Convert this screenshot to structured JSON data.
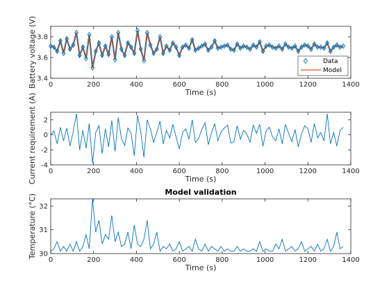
{
  "figure": {
    "background": "#ffffff"
  },
  "chart_data": [
    {
      "type": "line",
      "xlabel": "Time (s)",
      "ylabel": "Battery voltage (V)",
      "xlim": [
        0,
        1400
      ],
      "ylim": [
        3.4,
        3.9
      ],
      "xticks": [
        0,
        200,
        400,
        600,
        800,
        1000,
        1200,
        1400
      ],
      "yticks": [
        3.4,
        3.6,
        3.8
      ],
      "ytick_labels": [
        "3.4",
        "3.6",
        "3.8"
      ],
      "legend": {
        "placement": "bottom-right",
        "entries": [
          "Data",
          "Model"
        ]
      },
      "series": [
        {
          "name": "Data",
          "marker": "diamond",
          "color": "#0072bd"
        },
        {
          "name": "Model",
          "marker": "none",
          "color": "#d95319"
        }
      ],
      "t": [
        0,
        15,
        30,
        45,
        60,
        75,
        90,
        105,
        120,
        135,
        150,
        165,
        180,
        195,
        210,
        225,
        240,
        255,
        270,
        285,
        300,
        315,
        330,
        345,
        360,
        375,
        390,
        405,
        420,
        435,
        450,
        465,
        480,
        495,
        510,
        525,
        540,
        555,
        570,
        585,
        600,
        615,
        630,
        645,
        660,
        675,
        690,
        705,
        720,
        735,
        750,
        765,
        780,
        795,
        810,
        825,
        840,
        855,
        870,
        885,
        900,
        915,
        930,
        945,
        960,
        975,
        990,
        1005,
        1020,
        1035,
        1050,
        1065,
        1080,
        1095,
        1110,
        1125,
        1140,
        1155,
        1170,
        1185,
        1200,
        1215,
        1230,
        1245,
        1260,
        1275,
        1290,
        1305,
        1320,
        1335,
        1350,
        1365
      ],
      "voltage": [
        3.71,
        3.7,
        3.66,
        3.76,
        3.64,
        3.78,
        3.68,
        3.72,
        3.84,
        3.62,
        3.7,
        3.59,
        3.82,
        3.5,
        3.66,
        3.74,
        3.62,
        3.71,
        3.63,
        3.8,
        3.58,
        3.84,
        3.68,
        3.62,
        3.74,
        3.7,
        3.64,
        3.86,
        3.68,
        3.57,
        3.84,
        3.72,
        3.64,
        3.68,
        3.8,
        3.64,
        3.71,
        3.67,
        3.74,
        3.7,
        3.62,
        3.7,
        3.72,
        3.69,
        3.77,
        3.67,
        3.69,
        3.71,
        3.73,
        3.67,
        3.7,
        3.76,
        3.69,
        3.7,
        3.71,
        3.72,
        3.68,
        3.67,
        3.73,
        3.69,
        3.71,
        3.7,
        3.68,
        3.72,
        3.7,
        3.75,
        3.66,
        3.71,
        3.72,
        3.7,
        3.69,
        3.71,
        3.68,
        3.73,
        3.7,
        3.69,
        3.71,
        3.66,
        3.7,
        3.72,
        3.71,
        3.68,
        3.73,
        3.7,
        3.7,
        3.69,
        3.74,
        3.66,
        3.7,
        3.72,
        3.7,
        3.71
      ]
    },
    {
      "type": "line",
      "xlabel": "Time (s)",
      "ylabel": "Current requirement (A)",
      "xlim": [
        0,
        1400
      ],
      "ylim": [
        -4,
        3
      ],
      "xticks": [
        0,
        200,
        400,
        600,
        800,
        1000,
        1200,
        1400
      ],
      "yticks": [
        -4,
        -2,
        0,
        2
      ],
      "ytick_labels": [
        "-4",
        "-2",
        "0",
        "2"
      ],
      "color": "#0072bd",
      "t": [
        0,
        15,
        30,
        45,
        60,
        75,
        90,
        105,
        120,
        135,
        150,
        165,
        180,
        195,
        210,
        225,
        240,
        255,
        270,
        285,
        300,
        315,
        330,
        345,
        360,
        375,
        390,
        405,
        420,
        435,
        450,
        465,
        480,
        495,
        510,
        525,
        540,
        555,
        570,
        585,
        600,
        615,
        630,
        645,
        660,
        675,
        690,
        705,
        720,
        735,
        750,
        765,
        780,
        795,
        810,
        825,
        840,
        855,
        870,
        885,
        900,
        915,
        930,
        945,
        960,
        975,
        990,
        1005,
        1020,
        1035,
        1050,
        1065,
        1080,
        1095,
        1110,
        1125,
        1140,
        1155,
        1170,
        1185,
        1200,
        1215,
        1230,
        1245,
        1260,
        1275,
        1290,
        1305,
        1320,
        1335,
        1350,
        1365
      ],
      "current": [
        0.0,
        0.5,
        -1.2,
        1.0,
        -0.8,
        0.9,
        -1.5,
        0.4,
        2.8,
        -2.0,
        0.6,
        -1.8,
        1.5,
        -3.8,
        0.3,
        1.2,
        -2.5,
        0.8,
        -1.6,
        1.9,
        -2.2,
        2.3,
        -0.5,
        -1.4,
        0.9,
        0.2,
        -2.8,
        2.6,
        0.4,
        -3.0,
        2.0,
        0.8,
        -1.0,
        0.3,
        1.8,
        -1.2,
        0.6,
        -0.4,
        1.4,
        -0.3,
        -1.9,
        0.3,
        0.8,
        -0.6,
        2.0,
        -1.0,
        -0.5,
        0.7,
        1.6,
        -1.3,
        0.2,
        1.5,
        -0.8,
        0.4,
        0.9,
        1.3,
        -1.1,
        -0.9,
        1.2,
        -0.6,
        0.6,
        0.1,
        -1.0,
        1.3,
        0.2,
        1.4,
        -1.5,
        0.5,
        1.0,
        -0.3,
        -0.8,
        0.8,
        -1.2,
        1.4,
        0.2,
        -0.9,
        0.7,
        -1.6,
        0.1,
        1.2,
        0.8,
        -1.0,
        1.5,
        -0.4,
        0.3,
        -0.8,
        2.8,
        -1.2,
        0.3,
        -1.5,
        0.6,
        1.0
      ]
    },
    {
      "type": "line",
      "title": "Model validation",
      "xlabel": "Time (s)",
      "ylabel": "Temperature (°C)",
      "xlim": [
        0,
        1400
      ],
      "ylim": [
        30,
        32.3
      ],
      "xticks": [
        0,
        200,
        400,
        600,
        800,
        1000,
        1200,
        1400
      ],
      "yticks": [
        30,
        31,
        32
      ],
      "ytick_labels": [
        "30",
        "31",
        "32"
      ],
      "color": "#0072bd",
      "t": [
        0,
        15,
        30,
        45,
        60,
        75,
        90,
        105,
        120,
        135,
        150,
        165,
        180,
        195,
        210,
        225,
        240,
        255,
        270,
        285,
        300,
        315,
        330,
        345,
        360,
        375,
        390,
        405,
        420,
        435,
        450,
        465,
        480,
        495,
        510,
        525,
        540,
        555,
        570,
        585,
        600,
        615,
        630,
        645,
        660,
        675,
        690,
        705,
        720,
        735,
        750,
        765,
        780,
        795,
        810,
        825,
        840,
        855,
        870,
        885,
        900,
        915,
        930,
        945,
        960,
        975,
        990,
        1005,
        1020,
        1035,
        1050,
        1065,
        1080,
        1095,
        1110,
        1125,
        1140,
        1155,
        1170,
        1185,
        1200,
        1215,
        1230,
        1245,
        1260,
        1275,
        1290,
        1305,
        1320,
        1335,
        1350,
        1365
      ],
      "temperature": [
        30.1,
        30.2,
        30.5,
        30.1,
        30.3,
        30.1,
        30.4,
        30.1,
        30.5,
        30.1,
        30.3,
        30.8,
        30.2,
        32.3,
        30.9,
        31.4,
        30.4,
        30.8,
        30.6,
        31.6,
        30.5,
        30.9,
        30.3,
        30.4,
        30.9,
        30.2,
        31.2,
        30.4,
        30.3,
        30.6,
        31.4,
        30.2,
        30.4,
        30.9,
        30.1,
        30.3,
        30.2,
        30.4,
        30.1,
        30.2,
        30.5,
        30.1,
        30.2,
        30.3,
        30.1,
        30.6,
        30.2,
        30.1,
        30.4,
        30.1,
        30.3,
        30.2,
        30.1,
        30.3,
        30.1,
        30.2,
        30.1,
        30.1,
        30.3,
        30.1,
        30.2,
        30.1,
        30.1,
        30.2,
        30.1,
        30.5,
        30.1,
        30.2,
        30.1,
        30.1,
        30.4,
        30.2,
        30.6,
        30.1,
        30.2,
        30.3,
        30.1,
        30.2,
        30.5,
        30.1,
        30.2,
        30.3,
        30.1,
        30.4,
        30.1,
        30.2,
        30.6,
        30.1,
        30.3,
        30.9,
        30.2,
        30.3
      ]
    }
  ]
}
